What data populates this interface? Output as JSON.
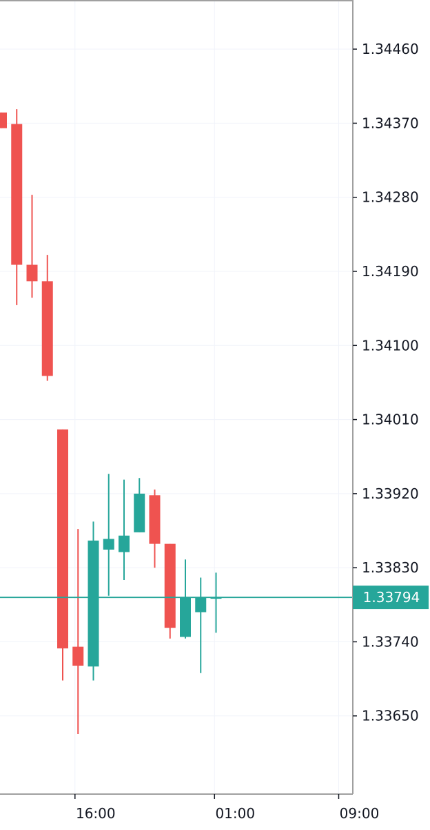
{
  "chart_data": {
    "type": "candlestick",
    "title": "",
    "xlabel": "",
    "ylabel": "",
    "ylim": [
      1.33555,
      1.34518
    ],
    "y_ticks": [
      1.3446,
      1.3437,
      1.3428,
      1.3419,
      1.341,
      1.3401,
      1.3392,
      1.3383,
      1.3374,
      1.3365
    ],
    "y_tick_labels": [
      "1.34460",
      "1.34370",
      "1.34280",
      "1.34190",
      "1.34100",
      "1.34010",
      "1.33920",
      "1.33830",
      "1.33740",
      "1.33650"
    ],
    "x_ticks": [
      {
        "label": "16:00",
        "index": 4.8
      },
      {
        "label": "01:00",
        "index": 13.9
      },
      {
        "label": "09:00",
        "index": 22.0
      }
    ],
    "last_price": 1.33794,
    "last_price_label": "1.33794",
    "colors": {
      "up": "#26a69a",
      "down": "#ef5350",
      "grid": "#f0f3fa",
      "axis": "#a0a0a0",
      "text": "#131722",
      "price_line": "#26a69a"
    },
    "candles": [
      {
        "o": 1.34383,
        "h": 1.34383,
        "l": 1.34364,
        "c": 1.34364
      },
      {
        "o": 1.34369,
        "h": 1.34387,
        "l": 1.34149,
        "c": 1.34198
      },
      {
        "o": 1.34198,
        "h": 1.34283,
        "l": 1.34158,
        "c": 1.34178
      },
      {
        "o": 1.34178,
        "h": 1.3421,
        "l": 1.34057,
        "c": 1.34063
      },
      {
        "o": 1.33998,
        "h": 1.33998,
        "l": 1.33693,
        "c": 1.33732
      },
      {
        "o": 1.33734,
        "h": 1.33877,
        "l": 1.33628,
        "c": 1.33711
      },
      {
        "o": 1.3371,
        "h": 1.33886,
        "l": 1.33693,
        "c": 1.33863
      },
      {
        "o": 1.33852,
        "h": 1.33944,
        "l": 1.33796,
        "c": 1.33865
      },
      {
        "o": 1.33849,
        "h": 1.33937,
        "l": 1.33815,
        "c": 1.33869
      },
      {
        "o": 1.33873,
        "h": 1.33939,
        "l": 1.33873,
        "c": 1.3392
      },
      {
        "o": 1.33918,
        "h": 1.33925,
        "l": 1.3383,
        "c": 1.33859
      },
      {
        "o": 1.33859,
        "h": 1.33859,
        "l": 1.33744,
        "c": 1.33757
      },
      {
        "o": 1.33746,
        "h": 1.3384,
        "l": 1.33744,
        "c": 1.33794
      },
      {
        "o": 1.33776,
        "h": 1.33818,
        "l": 1.33702,
        "c": 1.33794
      },
      {
        "o": 1.33794,
        "h": 1.33824,
        "l": 1.33751,
        "c": 1.33794
      }
    ]
  }
}
